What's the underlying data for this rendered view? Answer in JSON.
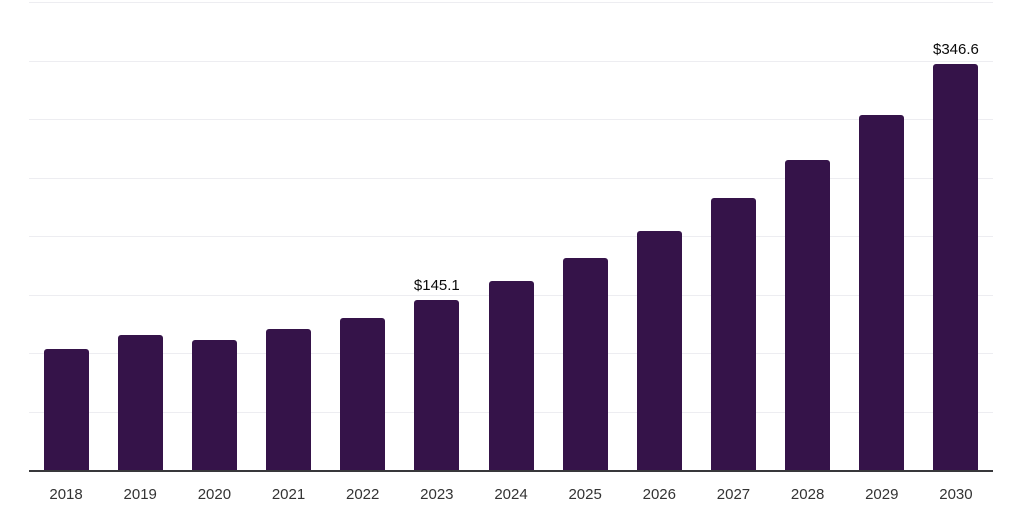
{
  "chart_data": {
    "type": "bar",
    "title": "",
    "xlabel": "",
    "ylabel": "",
    "categories": [
      "2018",
      "2019",
      "2020",
      "2021",
      "2022",
      "2023",
      "2024",
      "2025",
      "2026",
      "2027",
      "2028",
      "2029",
      "2030"
    ],
    "values": [
      103.2,
      115.7,
      110.9,
      120.9,
      130.2,
      145.1,
      161.5,
      181.4,
      204.7,
      232.6,
      264.7,
      303.7,
      346.6
    ],
    "data_labels": [
      {
        "category": "2023",
        "label": "$145.1"
      },
      {
        "category": "2030",
        "label": "$346.6"
      }
    ],
    "ylim": [
      0,
      400
    ],
    "grid": "horizontal gridlines, unlabeled, 8 intervals",
    "legend": "none"
  },
  "colors": {
    "bar_fill": "#351349",
    "gridline": "#ededf1",
    "axis_line": "#38383b",
    "x_label_text": "#333333",
    "data_label_text": "#0a0a0a",
    "background": "#ffffff"
  }
}
